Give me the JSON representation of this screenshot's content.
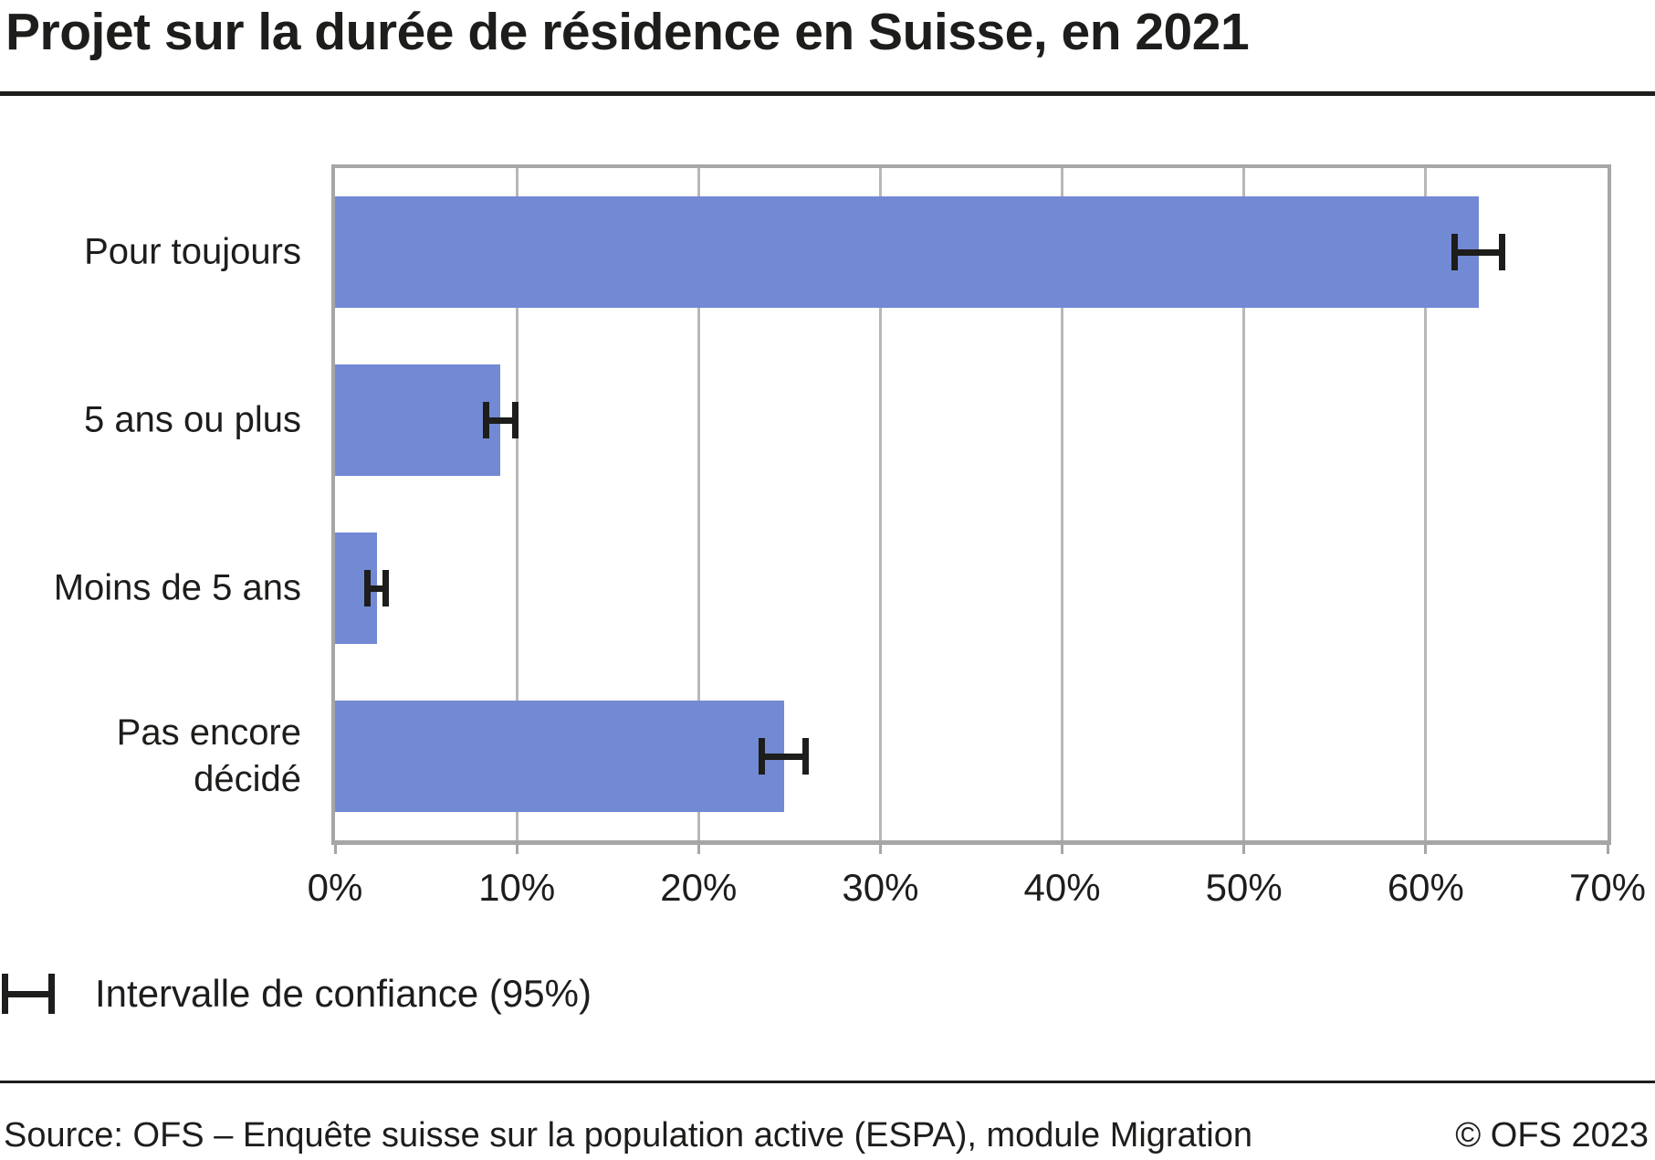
{
  "title": "Projet sur la durée de résidence en Suisse, en 2021",
  "chart_data": {
    "type": "bar",
    "orientation": "horizontal",
    "title": "Projet sur la durée de résidence en Suisse, en 2021",
    "categories": [
      "Pour toujours",
      "5 ans ou plus",
      "Moins de 5 ans",
      "Pas encore décidé"
    ],
    "values": [
      62.9,
      9.1,
      2.3,
      24.7
    ],
    "confidence_intervals": [
      [
        61.6,
        64.2
      ],
      [
        8.3,
        9.9
      ],
      [
        1.8,
        2.8
      ],
      [
        23.5,
        25.9
      ]
    ],
    "xlim": [
      0,
      70
    ],
    "x_ticks": [
      0,
      10,
      20,
      30,
      40,
      50,
      60,
      70
    ],
    "x_tick_labels": [
      "0%",
      "10%",
      "20%",
      "30%",
      "40%",
      "50%",
      "60%",
      "70%"
    ],
    "grid": true,
    "legend_position": "bottom-left",
    "bar_color": "#7289d4",
    "gridline_color": "#b8b8b8",
    "axis_color": "#a6a6a6",
    "error_bar_color": "#1d1d1b"
  },
  "legend": {
    "label": "Intervalle de confiance (95%)"
  },
  "footer": {
    "source": "Source: OFS – Enquête suisse sur la population active (ESPA), module Migration",
    "copyright": "© OFS 2023"
  }
}
